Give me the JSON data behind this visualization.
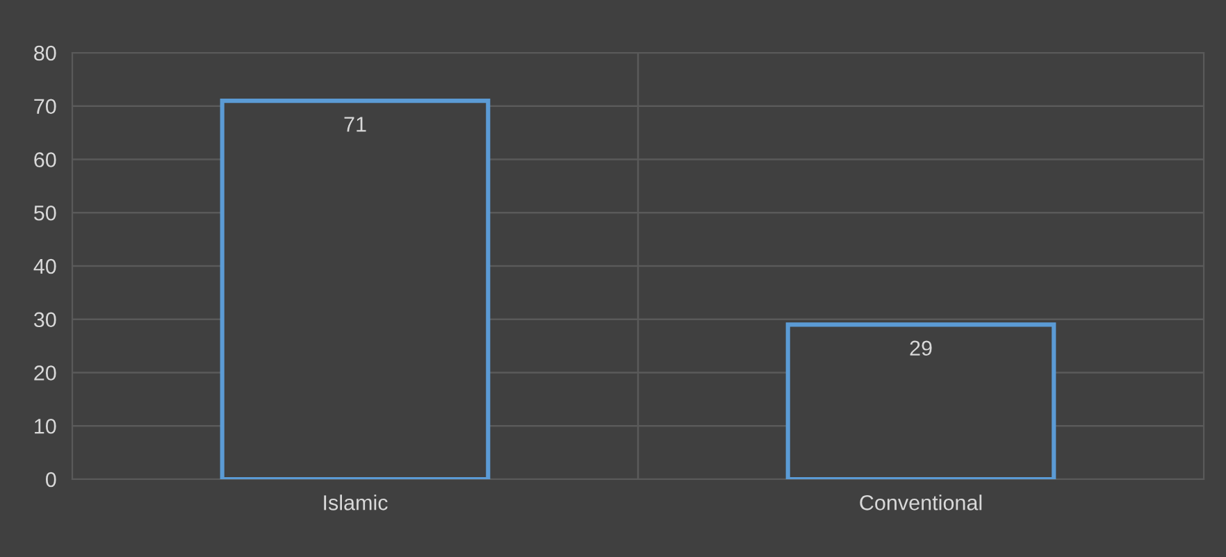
{
  "chart_data": {
    "type": "bar",
    "categories": [
      "Islamic",
      "Conventional"
    ],
    "values": [
      71,
      29
    ],
    "color": "#5b9bd5",
    "ylim": [
      0,
      80
    ],
    "yticks": [
      0,
      10,
      20,
      30,
      40,
      50,
      60,
      70,
      80
    ],
    "grid": true,
    "data_labels": true
  }
}
